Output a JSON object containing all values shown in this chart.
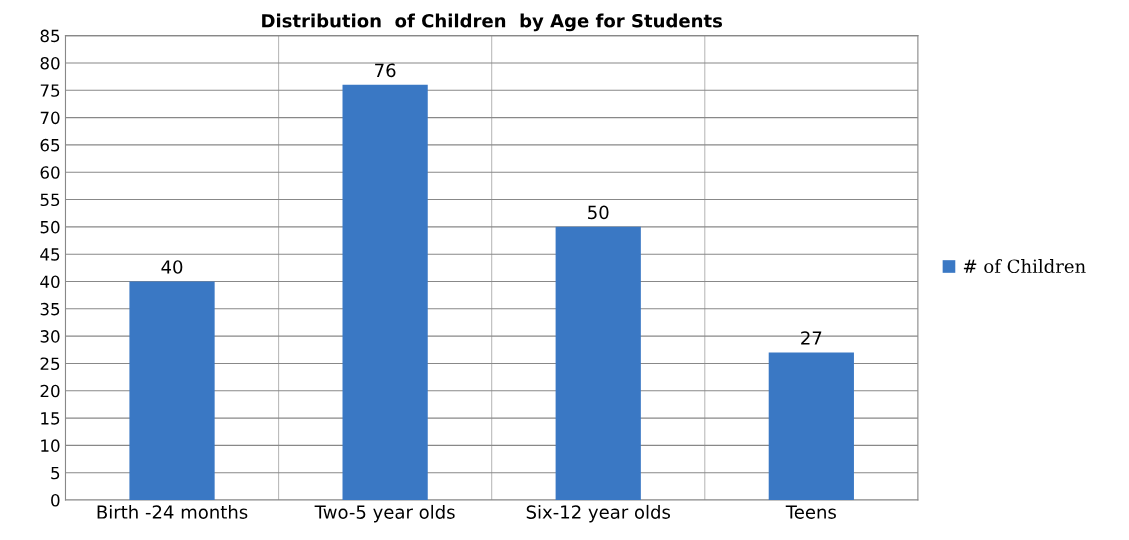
{
  "chart_data": {
    "type": "bar",
    "title": "Distribution  of Children  by Age for Students",
    "categories": [
      "Birth -24 months",
      "Two-5 year olds",
      "Six-12 year olds",
      "Teens"
    ],
    "series": [
      {
        "name": "# of Children",
        "color": "#3a78c4",
        "values": [
          40,
          76,
          50,
          27
        ]
      }
    ],
    "ylim": [
      0,
      85
    ],
    "yticks": [
      0,
      5,
      10,
      15,
      20,
      25,
      30,
      35,
      40,
      45,
      50,
      55,
      60,
      65,
      70,
      75,
      80,
      85
    ],
    "grid": true,
    "legend": "right",
    "data_labels": true
  }
}
